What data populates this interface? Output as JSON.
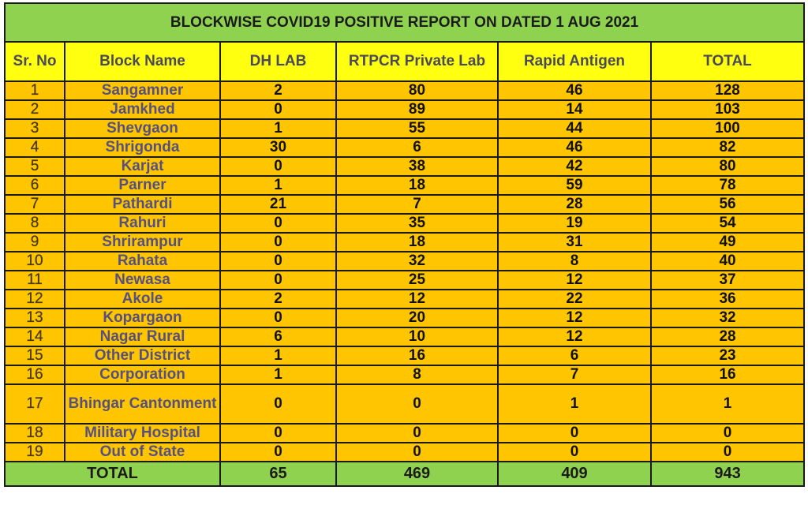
{
  "title": "BLOCKWISE COVID19 POSITIVE REPORT ON DATED 1 AUG 2021",
  "headers": [
    "Sr. No",
    "Block Name",
    "DH LAB",
    "RTPCR Private Lab",
    "Rapid Antigen",
    "TOTAL"
  ],
  "rows": [
    [
      "1",
      "Sangamner",
      "2",
      "80",
      "46",
      "128"
    ],
    [
      "2",
      "Jamkhed",
      "0",
      "89",
      "14",
      "103"
    ],
    [
      "3",
      "Shevgaon",
      "1",
      "55",
      "44",
      "100"
    ],
    [
      "4",
      "Shrigonda",
      "30",
      "6",
      "46",
      "82"
    ],
    [
      "5",
      "Karjat",
      "0",
      "38",
      "42",
      "80"
    ],
    [
      "6",
      "Parner",
      "1",
      "18",
      "59",
      "78"
    ],
    [
      "7",
      "Pathardi",
      "21",
      "7",
      "28",
      "56"
    ],
    [
      "8",
      "Rahuri",
      "0",
      "35",
      "19",
      "54"
    ],
    [
      "9",
      "Shrirampur",
      "0",
      "18",
      "31",
      "49"
    ],
    [
      "10",
      "Rahata",
      "0",
      "32",
      "8",
      "40"
    ],
    [
      "11",
      "Newasa",
      "0",
      "25",
      "12",
      "37"
    ],
    [
      "12",
      "Akole",
      "2",
      "12",
      "22",
      "36"
    ],
    [
      "13",
      "Kopargaon",
      "0",
      "20",
      "12",
      "32"
    ],
    [
      "14",
      "Nagar Rural",
      "6",
      "10",
      "12",
      "28"
    ],
    [
      "15",
      "Other District",
      "1",
      "16",
      "6",
      "23"
    ],
    [
      "16",
      "Corporation",
      "1",
      "8",
      "7",
      "16"
    ],
    [
      "17",
      "Bhingar Cantonment",
      "0",
      "0",
      "1",
      "1"
    ],
    [
      "18",
      "Military Hospital",
      "0",
      "0",
      "0",
      "0"
    ],
    [
      "19",
      "Out of State",
      "0",
      "0",
      "0",
      "0"
    ]
  ],
  "total": {
    "label": "TOTAL",
    "values": [
      "65",
      "469",
      "409",
      "943"
    ]
  },
  "colors": {
    "title_bg": "#8fd24f",
    "header_bg": "#ffff10",
    "row_bg": "#ffc600",
    "total_bg": "#8fd24f"
  }
}
